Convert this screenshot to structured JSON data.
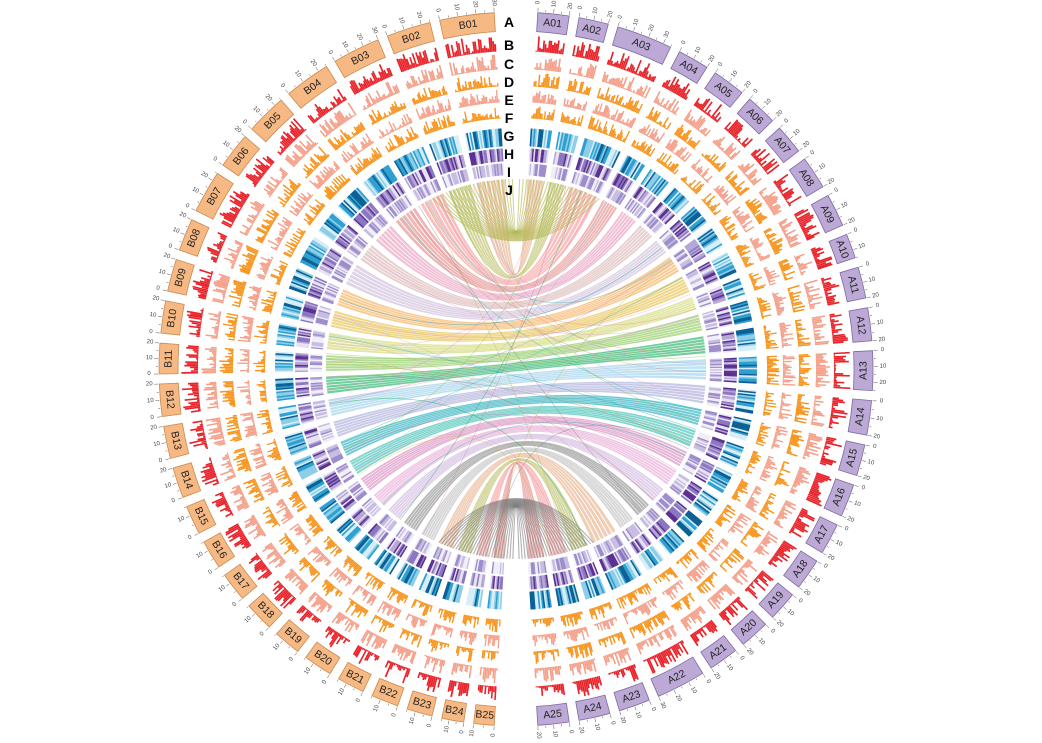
{
  "track_labels": [
    "A",
    "B",
    "C",
    "D",
    "E",
    "F",
    "G",
    "H",
    "I",
    "J"
  ],
  "genome_a": {
    "chromosomes": [
      "A01",
      "A02",
      "A03",
      "A04",
      "A05",
      "A06",
      "A07",
      "A08",
      "A09",
      "A10",
      "A11",
      "A12",
      "A13",
      "A14",
      "A15",
      "A16",
      "A17",
      "A18",
      "A19",
      "A20",
      "A21",
      "A22",
      "A23",
      "A24",
      "A25"
    ],
    "relative_lengths": [
      0.95,
      0.9,
      1.7,
      0.95,
      1.0,
      0.95,
      0.9,
      1.0,
      1.0,
      0.75,
      0.95,
      1.0,
      1.2,
      1.05,
      0.95,
      1.0,
      0.95,
      0.95,
      0.9,
      0.9,
      0.9,
      1.5,
      0.95,
      0.95,
      0.95
    ],
    "color": "#bda9d6",
    "stroke": "#7d6aa3"
  },
  "genome_b": {
    "chromosomes": [
      "B01",
      "B02",
      "B03",
      "B04",
      "B05",
      "B06",
      "B07",
      "B08",
      "B09",
      "B10",
      "B11",
      "B12",
      "B13",
      "B14",
      "B15",
      "B16",
      "B17",
      "B18",
      "B19",
      "B20",
      "B21",
      "B22",
      "B23",
      "B24",
      "B25"
    ],
    "relative_lengths": [
      1.6,
      1.3,
      1.4,
      1.35,
      1.2,
      1.05,
      1.25,
      0.95,
      0.95,
      0.95,
      0.9,
      0.95,
      0.95,
      0.9,
      0.85,
      0.85,
      0.85,
      0.85,
      0.8,
      0.85,
      0.8,
      0.8,
      0.75,
      0.65,
      0.6
    ],
    "color": "#f7b983",
    "stroke": "#c98a52"
  },
  "tick_values": [
    "0",
    "10",
    "20",
    "30",
    "40"
  ],
  "track_colors": {
    "B": "#e8232a",
    "C": "#f4a08a",
    "D": "#f7941d",
    "E": "#f4a08a",
    "F": "#f7941d",
    "G": [
      "#d6eef8",
      "#8ccde8",
      "#2e9fd1",
      "#0a5f94"
    ],
    "H": [
      "#e7e1f1",
      "#b4a6d6",
      "#8a76c0",
      "#5a2f91"
    ],
    "I": [
      "#f1eef8",
      "#c7bde3",
      "#9c8ccb"
    ]
  },
  "link_colors": [
    "#e4a57a",
    "#b0b54e",
    "#f58a8a",
    "#e07a7a",
    "#e58fb5",
    "#d6a9a9",
    "#c6b0d4",
    "#f4a340",
    "#e4b62d",
    "#cbd25a",
    "#7cc242",
    "#00a651",
    "#8cc9e8",
    "#9d9ed6",
    "#00a0b0",
    "#1fb5a8",
    "#cf77b4",
    "#e39ad0",
    "#c6a7d8",
    "#7a7a7a",
    "#b5b5b5"
  ],
  "caption": ""
}
